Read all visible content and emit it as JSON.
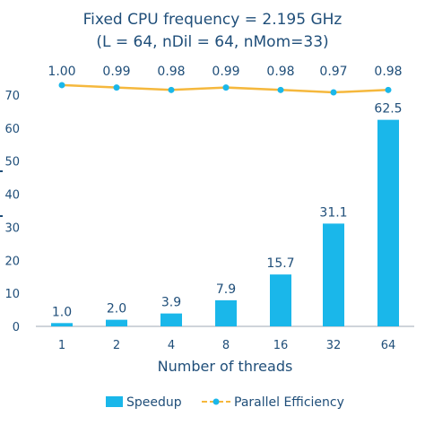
{
  "chart_data": {
    "type": "bar",
    "title": "Fixed CPU frequency = 2.195 GHz",
    "subtitle": "(L = 64, nDil = 64, nMom=33)",
    "xlabel": "Number of threads",
    "ylabel": "",
    "categories": [
      "1",
      "2",
      "4",
      "8",
      "16",
      "32",
      "64"
    ],
    "ylim": [
      0,
      70
    ],
    "yticks": [
      "0",
      "10",
      "20",
      "30",
      "40",
      "50",
      "60",
      "70"
    ],
    "grid": false,
    "legend_position": "bottom",
    "series": [
      {
        "name": "Speedup",
        "type": "bar",
        "color": "#1ab7ea",
        "values": [
          1.0,
          2.0,
          3.9,
          7.9,
          15.7,
          31.1,
          62.5
        ],
        "labels": [
          "1.0",
          "2.0",
          "3.9",
          "7.9",
          "15.7",
          "31.1",
          "62.5"
        ]
      },
      {
        "name": "Parallel Efficiency",
        "type": "line",
        "color": "#f5b83d",
        "marker_color": "#1ab7ea",
        "values": [
          1.0,
          0.99,
          0.98,
          0.99,
          0.98,
          0.97,
          0.98
        ],
        "labels": [
          "1.00",
          "0.99",
          "0.98",
          "0.99",
          "0.98",
          "0.97",
          "0.98"
        ]
      }
    ]
  }
}
